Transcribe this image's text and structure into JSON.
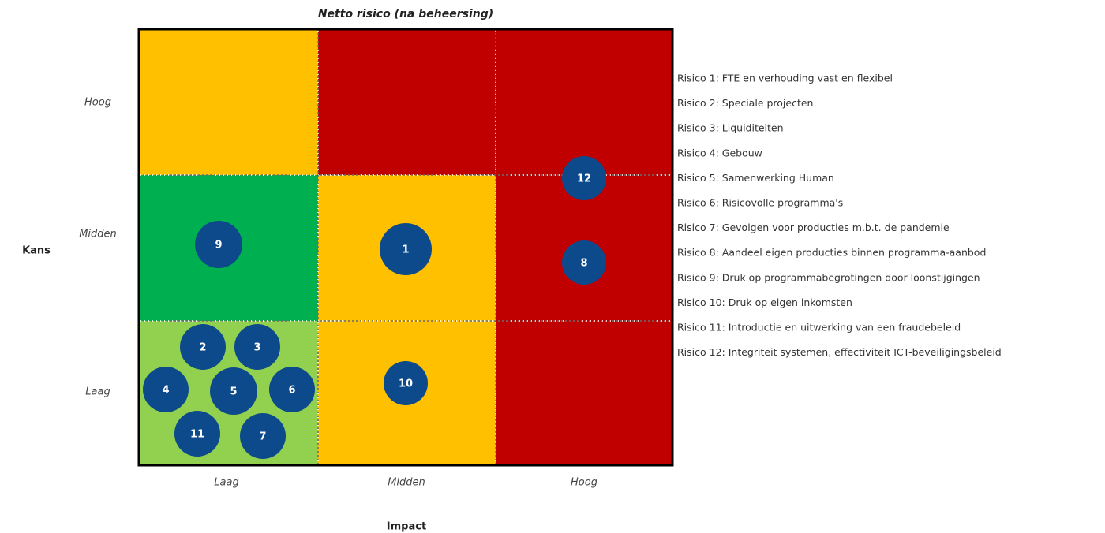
{
  "title": "Netto risico (na beheersing)",
  "y_axis_label": "Kans",
  "x_axis_label": "Impact",
  "row_labels": [
    "Hoog",
    "Midden",
    "Laag"
  ],
  "column_labels": [
    "Laag",
    "Midden",
    "Hoog"
  ],
  "grid": [
    [
      {
        "color": "#ffc000",
        "markers": []
      },
      {
        "color": "#c00000",
        "markers": []
      },
      {
        "color": "#c00000",
        "markers": [
          "12"
        ]
      }
    ],
    [
      {
        "color": "#00b050",
        "markers": [
          "9"
        ]
      },
      {
        "color": "#ffc000",
        "markers": [
          "1"
        ]
      },
      {
        "color": "#c00000",
        "markers": [
          "8"
        ]
      }
    ],
    [
      {
        "color": "#92d050",
        "markers": [
          "2",
          "3",
          "4",
          "5",
          "6",
          "11",
          "7"
        ]
      },
      {
        "color": "#ffc000",
        "markers": [
          "10"
        ]
      },
      {
        "color": "#c00000",
        "markers": []
      }
    ]
  ],
  "marker_color": "#0d4a8c",
  "legend": [
    "Risico 1: FTE en verhouding vast en flexibel",
    "Risico 2: Speciale projecten",
    "Risico 3: Liquiditeiten",
    "Risico 4: Gebouw",
    "Risico 5: Samenwerking Human",
    "Risico 6: Risicovolle programma's",
    "Risico 7: Gevolgen voor producties m.b.t. de pandemie",
    "Risico 8: Aandeel eigen producties binnen programma-aanbod",
    "Risico 9: Druk op programmabegrotingen door loonstijgingen",
    "Risico 10: Druk op eigen inkomsten",
    "Risico 11: Introductie en uitwerking van een fraudebeleid",
    "Risico 12: Integriteit systemen, effectiviteit ICT-beveiligingsbeleid"
  ]
}
